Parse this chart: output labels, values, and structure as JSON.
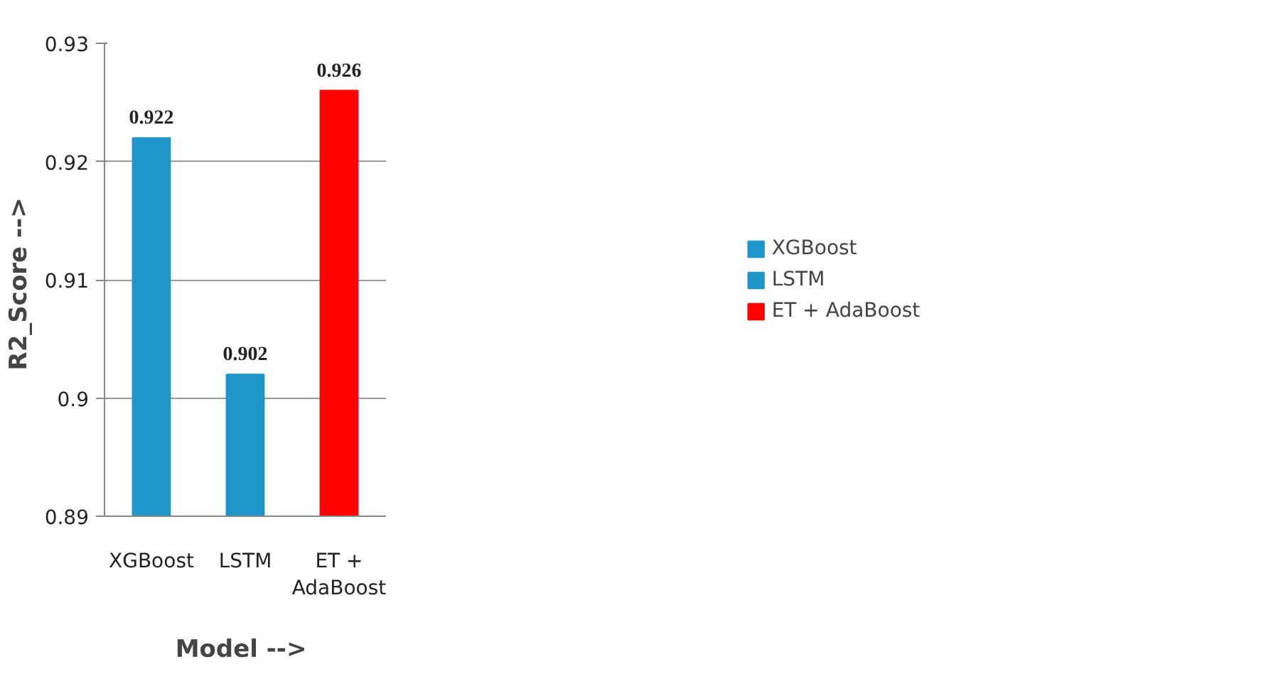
{
  "chart_data": {
    "type": "bar",
    "xlabel": "Model  -->",
    "ylabel": "R2_Score  -->",
    "categories": [
      "XGBoost",
      "LSTM",
      "ET + AdaBoost"
    ],
    "series": [
      {
        "name": "XGBoost",
        "color": "#1f96c9",
        "values": [
          0.922,
          null,
          null
        ]
      },
      {
        "name": "LSTM",
        "color": "#1f96c9",
        "values": [
          null,
          0.902,
          null
        ]
      },
      {
        "name": "ET + AdaBoost",
        "color": "#ff0000",
        "values": [
          null,
          null,
          0.926
        ]
      }
    ],
    "ylim": [
      0.89,
      0.93
    ],
    "yticks": [
      0.89,
      0.9,
      0.91,
      0.92,
      0.93
    ],
    "grid": "y",
    "legend": "right",
    "data_labels": true
  }
}
